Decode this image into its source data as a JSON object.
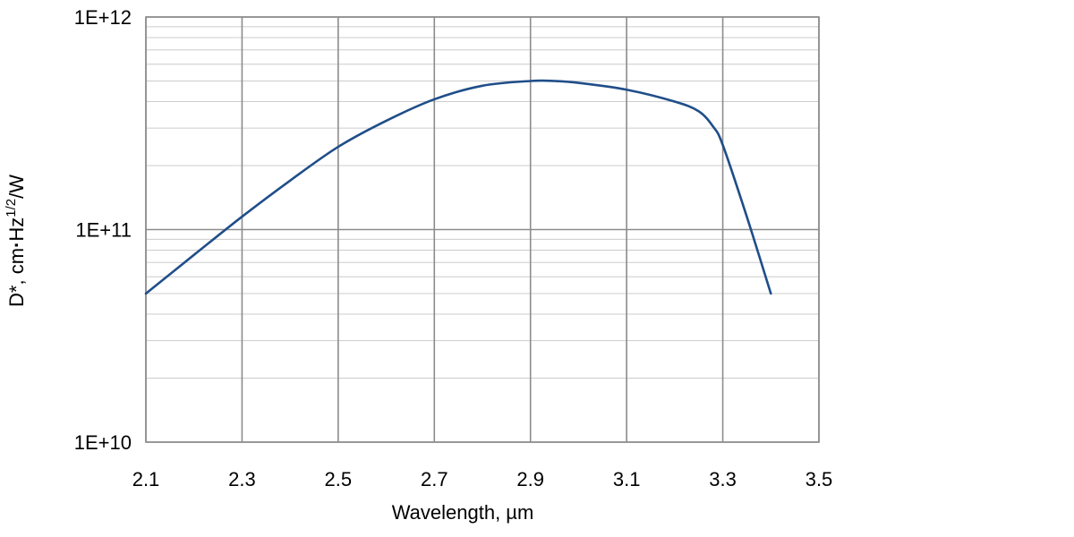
{
  "chart_data": {
    "type": "line",
    "title": "",
    "xlabel": "Wavelength, µm",
    "ylabel": {
      "prefix": "D*, cm",
      "dot": "·",
      "hz": "Hz",
      "exponent": "1/2",
      "suffix": "/W"
    },
    "xlim": [
      2.1,
      3.5
    ],
    "ylim": [
      10000000000.0,
      1000000000000.0
    ],
    "yscale": "log",
    "grid": true,
    "legend": "none",
    "x_ticks": [
      "2.1",
      "2.3",
      "2.5",
      "2.7",
      "2.9",
      "3.1",
      "3.3",
      "3.5"
    ],
    "y_ticks": [
      "1E+10",
      "1E+11",
      "1E+12"
    ],
    "series": [
      {
        "color": "#1f4e89",
        "x": [
          2.1,
          2.2,
          2.3,
          2.4,
          2.5,
          2.6,
          2.7,
          2.8,
          2.9,
          2.95,
          3.0,
          3.1,
          3.2,
          3.25,
          3.28,
          3.3,
          3.35,
          3.4
        ],
        "y": [
          50000000000.0,
          76000000000.0,
          115000000000.0,
          170000000000.0,
          245000000000.0,
          325000000000.0,
          410000000000.0,
          475000000000.0,
          500000000000.0,
          500000000000.0,
          490000000000.0,
          455000000000.0,
          400000000000.0,
          360000000000.0,
          305000000000.0,
          250000000000.0,
          115000000000.0,
          50000000000.0
        ]
      }
    ]
  }
}
